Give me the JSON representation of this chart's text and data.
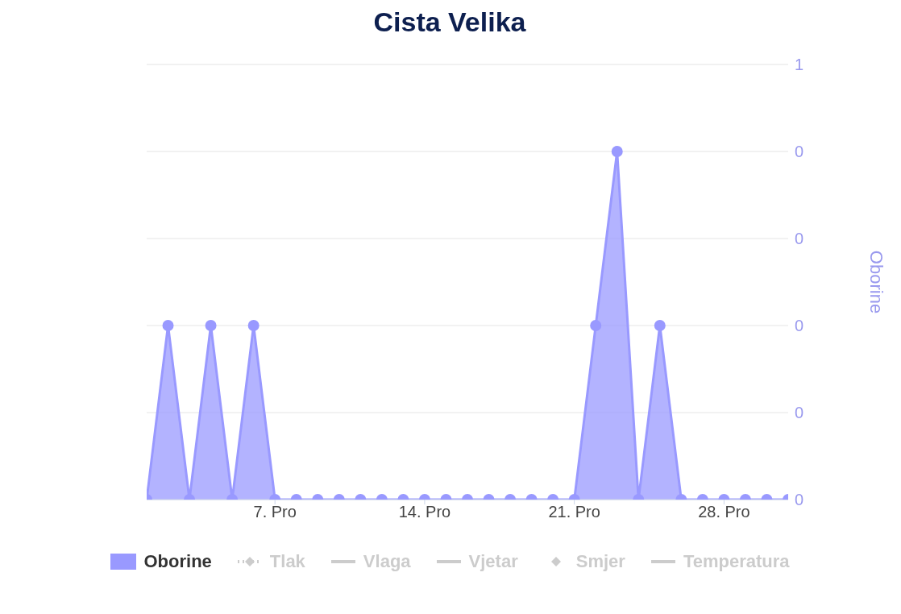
{
  "chart_data": {
    "type": "area",
    "title": "Cista Velika",
    "x": [
      "--12-01",
      "--12-02",
      "--12-03",
      "--12-04",
      "--12-05",
      "--12-06",
      "--12-07",
      "--12-08",
      "--12-09",
      "--12-10",
      "--12-11",
      "--12-12",
      "--12-13",
      "--12-14",
      "--12-15",
      "--12-16",
      "--12-17",
      "--12-18",
      "--12-19",
      "--12-20",
      "--12-21",
      "--12-22",
      "--12-23",
      "--12-24",
      "--12-25",
      "--12-26",
      "--12-27",
      "--12-28",
      "--12-29",
      "--12-30",
      "--12-31"
    ],
    "series": [
      {
        "name": "Oborine",
        "color": "#9999ff",
        "values": [
          0,
          0.2,
          0,
          0.2,
          0,
          0.2,
          0,
          0,
          0,
          0,
          0,
          0,
          0,
          0,
          0,
          0,
          0,
          0,
          0,
          0,
          0,
          0.2,
          0.4,
          0,
          0.2,
          0,
          0,
          0,
          0,
          0,
          0
        ]
      },
      {
        "name": "Tlak",
        "type": "line",
        "color": "#cccccc",
        "line_style": "dotted",
        "marker": "diamond",
        "values": [
          null,
          null,
          null,
          null,
          null,
          null,
          null,
          null,
          null,
          null,
          null,
          null,
          null,
          null,
          null,
          null,
          null,
          null,
          null,
          null,
          null,
          null,
          null,
          null,
          null,
          null,
          null,
          null,
          null,
          null,
          null
        ]
      },
      {
        "name": "Vlaga",
        "type": "line",
        "color": "#cccccc",
        "values": [
          null,
          null,
          null,
          null,
          null,
          null,
          null,
          null,
          null,
          null,
          null,
          null,
          null,
          null,
          null,
          null,
          null,
          null,
          null,
          null,
          null,
          null,
          null,
          null,
          null,
          null,
          null,
          null,
          null,
          null,
          null
        ]
      },
      {
        "name": "Vjetar",
        "type": "line",
        "color": "#cccccc",
        "values": [
          null,
          null,
          null,
          null,
          null,
          null,
          null,
          null,
          null,
          null,
          null,
          null,
          null,
          null,
          null,
          null,
          null,
          null,
          null,
          null,
          null,
          null,
          null,
          null,
          null,
          null,
          null,
          null,
          null,
          null,
          null
        ]
      },
      {
        "name": "Smjer",
        "type": "scatter",
        "color": "#cccccc",
        "marker": "diamond",
        "values": [
          null,
          null,
          null,
          null,
          null,
          null,
          null,
          null,
          null,
          null,
          null,
          null,
          null,
          null,
          null,
          null,
          null,
          null,
          null,
          null,
          null,
          null,
          null,
          null,
          null,
          null,
          null,
          null,
          null,
          null,
          null
        ]
      },
      {
        "name": "Temperatura",
        "type": "line",
        "color": "#cccccc",
        "values": [
          null,
          null,
          null,
          null,
          null,
          null,
          null,
          null,
          null,
          null,
          null,
          null,
          null,
          null,
          null,
          null,
          null,
          null,
          null,
          null,
          null,
          null,
          null,
          null,
          null,
          null,
          null,
          null,
          null,
          null,
          null
        ]
      }
    ],
    "xlim": [
      "--12-01",
      "--12-31"
    ],
    "xticks": [
      {
        "value": "--12-07",
        "label": "7. Pro"
      },
      {
        "value": "--12-14",
        "label": "14. Pro"
      },
      {
        "value": "--12-21",
        "label": "21. Pro"
      },
      {
        "value": "--12-28",
        "label": "28. Pro"
      }
    ],
    "ylabel": "Oborine",
    "ylim": [
      0,
      0.5
    ],
    "yticks": [
      {
        "value": 0,
        "label": "0"
      },
      {
        "value": 0.1,
        "label": "0"
      },
      {
        "value": 0.2,
        "label": "0"
      },
      {
        "value": 0.3,
        "label": "0"
      },
      {
        "value": 0.4,
        "label": "0"
      },
      {
        "value": 0.5,
        "label": "1"
      }
    ],
    "grid": "y",
    "marker": "circle",
    "legend": "bottom"
  }
}
